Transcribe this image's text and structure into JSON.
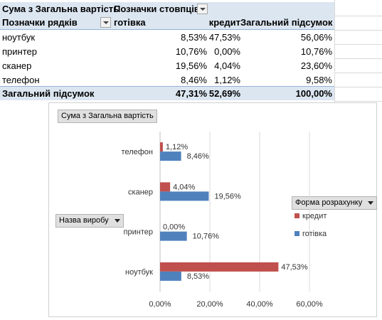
{
  "pivot": {
    "header": {
      "value_field": "Сума з Загальна вартість",
      "col_labels": "Позначки стовпців",
      "row_labels": "Позначки рядків",
      "col1": "готівка",
      "col2": "кредит",
      "total": "Загальний підсумок"
    },
    "rows": [
      {
        "label": "ноутбук",
        "cash": "8,53%",
        "credit": "47,53%",
        "total": "56,06%"
      },
      {
        "label": "принтер",
        "cash": "10,76%",
        "credit": "0,00%",
        "total": "10,76%"
      },
      {
        "label": "сканер",
        "cash": "19,56%",
        "credit": "4,04%",
        "total": "23,60%"
      },
      {
        "label": "телефон",
        "cash": "8,46%",
        "credit": "1,12%",
        "total": "9,58%"
      }
    ],
    "grand_total": {
      "label": "Загальний підсумок",
      "cash": "47,31%",
      "credit": "52,69%",
      "total": "100,00%"
    }
  },
  "chart_buttons": {
    "value_field": "Сума з Загальна вартість",
    "axis_field": "Назва виробу",
    "legend_field": "Форма розрахунку"
  },
  "chart_data": {
    "type": "bar",
    "orientation": "horizontal",
    "categories": [
      "ноутбук",
      "принтер",
      "сканер",
      "телефон"
    ],
    "series": [
      {
        "name": "готівка",
        "color": "#4f81bd",
        "values": [
          8.53,
          10.76,
          19.56,
          8.46
        ],
        "labels": [
          "8,53%",
          "10,76%",
          "19,56%",
          "8,46%"
        ]
      },
      {
        "name": "кредит",
        "color": "#c0504d",
        "values": [
          47.53,
          0.0,
          4.04,
          1.12
        ],
        "labels": [
          "47,53%",
          "0,00%",
          "4,04%",
          "1,12%"
        ]
      }
    ],
    "xlim": [
      0,
      60
    ],
    "xticks": [
      0,
      20,
      40,
      60
    ],
    "xtick_labels": [
      "0,00%",
      "20,00%",
      "40,00%",
      "60,00%"
    ],
    "grid": true,
    "legend_position": "right",
    "legend_order": [
      "кредит",
      "готівка"
    ]
  }
}
